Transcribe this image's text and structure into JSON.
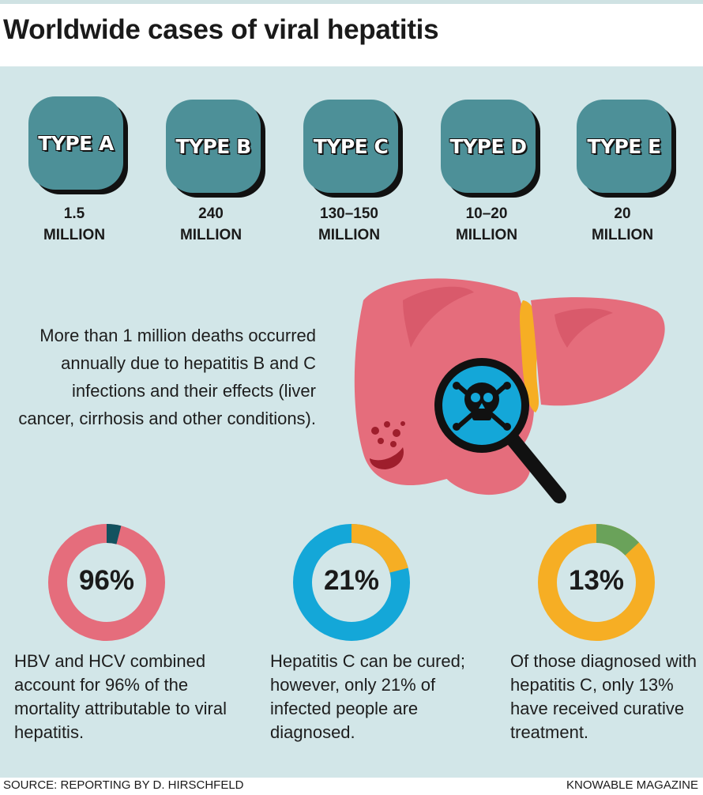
{
  "title": "Worldwide cases of viral hepatitis",
  "types": [
    {
      "label": "TYPE A",
      "line1": "1.5",
      "line2": "MILLION"
    },
    {
      "label": "TYPE B",
      "line1": "240",
      "line2": "MILLION"
    },
    {
      "label": "TYPE C",
      "line1": "130–150",
      "line2": "MILLION"
    },
    {
      "label": "TYPE D",
      "line1": "10–20",
      "line2": "MILLION"
    },
    {
      "label": "TYPE E",
      "line1": "20",
      "line2": "MILLION"
    }
  ],
  "deaths_text": "More than 1 million deaths occurred annually due to hepatitis B and C infections and their effects (liver cancer, cirrhosis and other conditions).",
  "stats": [
    {
      "percent_label": "96%",
      "value": 96,
      "caption": "HBV and HCV combined account for 96% of the mortality attributable to viral hepatitis.",
      "main_color": "#e56d7c",
      "accent_color": "#13525f"
    },
    {
      "percent_label": "21%",
      "value": 21,
      "caption": "Hepatitis C can be cured; however, only 21% of infected people are diagnosed.",
      "main_color": "#14a7d8",
      "accent_color": "#f6ae24"
    },
    {
      "percent_label": "13%",
      "value": 13,
      "caption": "Of those diagnosed with hepatitis C, only 13% have received curative treatment.",
      "main_color": "#f6ae24",
      "accent_color": "#6aa25a"
    }
  ],
  "icons": {
    "liver": "liver-illustration",
    "magnifier": "magnifier-icon",
    "skull": "skull-crossbones-icon"
  },
  "colors": {
    "panel": "#d2e6e8",
    "badge": "#4d9098",
    "liver": "#e56d7c",
    "gallbladder": "#f6ae24",
    "lens": "#14a7d8"
  },
  "footer": {
    "source": "SOURCE: REPORTING BY D. HIRSCHFELD",
    "brand": "KNOWABLE MAGAZINE"
  }
}
